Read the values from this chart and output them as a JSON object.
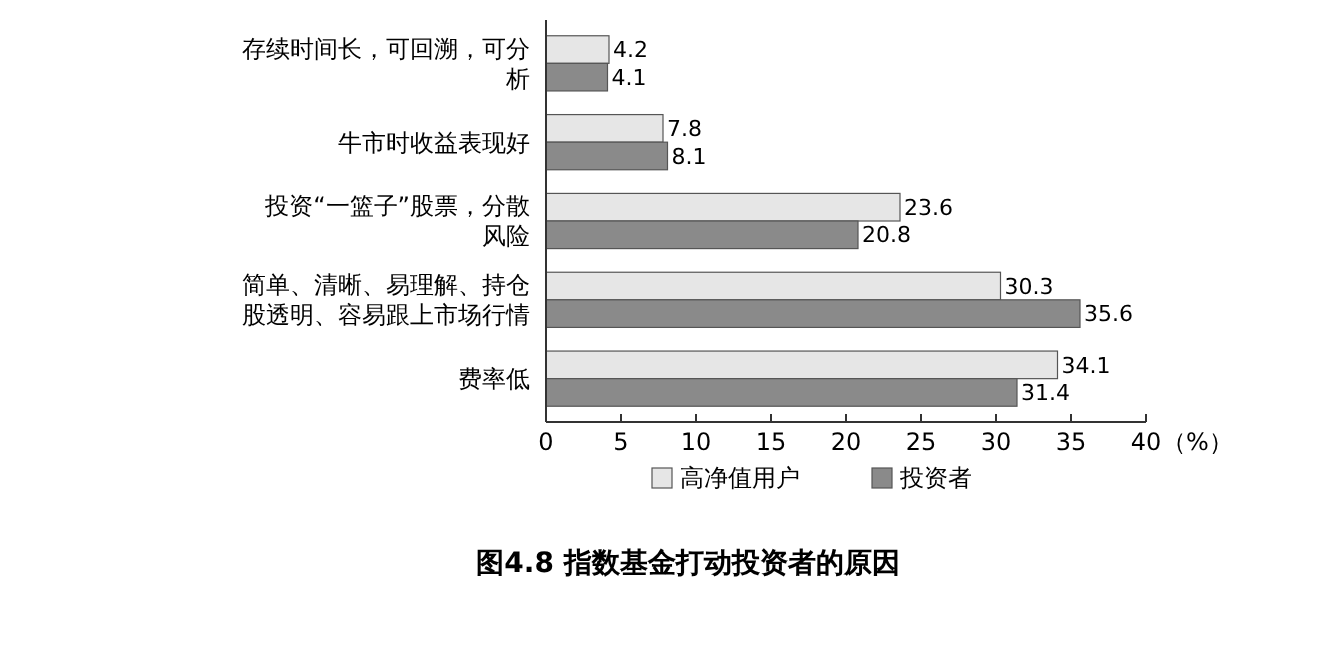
{
  "chart_data": {
    "type": "bar",
    "orientation": "horizontal",
    "title": "图4.8 指数基金打动投资者的原因",
    "xlabel": "（%）",
    "categories": [
      "存续时间长，可回溯，可分析",
      "牛市时收益表现好",
      "投资“一篮子”股票，分散风险",
      "简单、清晰、易理解、持仓股透明、容易跟上市场行情",
      "费率低"
    ],
    "series": [
      {
        "name": "高净值用户",
        "color": "#e6e6e6",
        "values": [
          4.2,
          7.8,
          23.6,
          30.3,
          34.1
        ]
      },
      {
        "name": "投资者",
        "color": "#8a8a8a",
        "values": [
          4.1,
          8.1,
          20.8,
          35.6,
          31.4
        ]
      }
    ],
    "xlim": [
      0,
      40
    ],
    "xticks": [
      0,
      5,
      10,
      15,
      20,
      25,
      30,
      35,
      40
    ],
    "data_labels": true,
    "legend": "bottom"
  }
}
